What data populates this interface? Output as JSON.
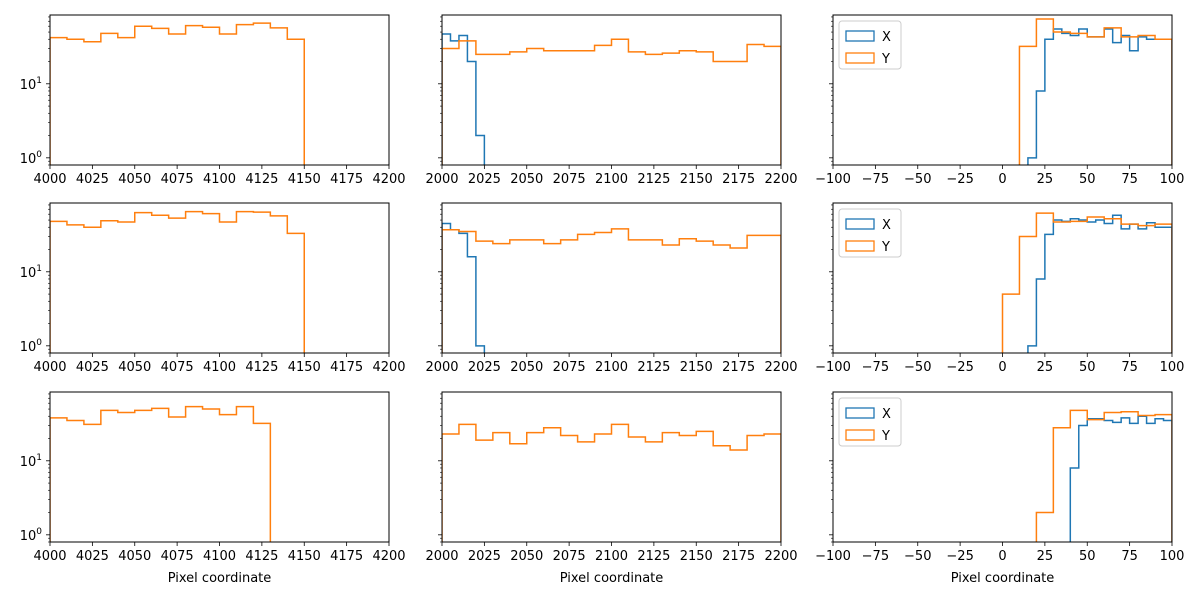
{
  "figure": {
    "xlabel": "Pixel coordinate"
  },
  "colors": {
    "X": "#1f77b4",
    "Y": "#ff7f0e",
    "axis": "#000000",
    "background": "#ffffff"
  },
  "chart_data": [
    {
      "type": "histogram-step",
      "row": 0,
      "col": 0,
      "yscale": "log",
      "xlim": [
        4000,
        4200
      ],
      "ylim": [
        0.8,
        85
      ],
      "xticks": [
        "4000",
        "4025",
        "4050",
        "4075",
        "4100",
        "4125",
        "4150",
        "4175",
        "4200"
      ],
      "yticks": [
        {
          "label": "10⁰",
          "v": 1
        },
        {
          "label": "10¹",
          "v": 10
        }
      ],
      "legend": null,
      "series": [
        {
          "name": "Y",
          "bins": [
            4000,
            4010,
            4020,
            4030,
            4040,
            4050,
            4060,
            4070,
            4080,
            4090,
            4100,
            4110,
            4120,
            4130,
            4140,
            4150
          ],
          "counts": [
            42,
            40,
            37,
            48,
            42,
            60,
            56,
            47,
            61,
            58,
            47,
            63,
            66,
            57,
            40
          ]
        }
      ]
    },
    {
      "type": "histogram-step",
      "row": 0,
      "col": 1,
      "yscale": "log",
      "xlim": [
        2000,
        2200
      ],
      "ylim": [
        0.8,
        85
      ],
      "xticks": [
        "2000",
        "2025",
        "2050",
        "2075",
        "2100",
        "2125",
        "2150",
        "2175",
        "2200"
      ],
      "yticks": [],
      "legend": null,
      "series": [
        {
          "name": "X",
          "bins": [
            2000,
            2005,
            2010,
            2015,
            2020,
            2025
          ],
          "counts": [
            47,
            38,
            45,
            20,
            2
          ]
        },
        {
          "name": "Y",
          "bins": [
            2000,
            2010,
            2020,
            2030,
            2040,
            2050,
            2060,
            2070,
            2080,
            2090,
            2100,
            2110,
            2120,
            2130,
            2140,
            2150,
            2160,
            2170,
            2180,
            2190,
            2200
          ],
          "counts": [
            30,
            38,
            25,
            25,
            27,
            30,
            28,
            28,
            28,
            33,
            40,
            27,
            25,
            26,
            28,
            27,
            20,
            20,
            34,
            32
          ]
        }
      ]
    },
    {
      "type": "histogram-step",
      "row": 0,
      "col": 2,
      "yscale": "log",
      "xlim": [
        -100,
        100
      ],
      "ylim": [
        0.8,
        85
      ],
      "xticks": [
        "−100",
        "−75",
        "−50",
        "−25",
        "0",
        "25",
        "50",
        "75",
        "100"
      ],
      "yticks": [],
      "legend": "upper-left",
      "series": [
        {
          "name": "X",
          "bins": [
            15,
            20,
            25,
            30,
            35,
            40,
            45,
            50,
            55,
            60,
            65,
            70,
            75,
            80,
            85,
            90,
            95,
            100
          ],
          "counts": [
            1,
            8,
            40,
            55,
            48,
            45,
            55,
            43,
            43,
            55,
            36,
            45,
            28,
            43,
            40,
            40,
            40
          ]
        },
        {
          "name": "Y",
          "bins": [
            10,
            20,
            30,
            40,
            50,
            60,
            70,
            80,
            90,
            100
          ],
          "counts": [
            32,
            75,
            50,
            48,
            43,
            57,
            43,
            45,
            40
          ]
        }
      ]
    },
    {
      "type": "histogram-step",
      "row": 1,
      "col": 0,
      "yscale": "log",
      "xlim": [
        4000,
        4200
      ],
      "ylim": [
        0.8,
        85
      ],
      "xticks": [
        "4000",
        "4025",
        "4050",
        "4075",
        "4100",
        "4125",
        "4150",
        "4175",
        "4200"
      ],
      "yticks": [
        {
          "label": "10⁰",
          "v": 1
        },
        {
          "label": "10¹",
          "v": 10
        }
      ],
      "legend": null,
      "series": [
        {
          "name": "Y",
          "bins": [
            4000,
            4010,
            4020,
            4030,
            4040,
            4050,
            4060,
            4070,
            4080,
            4090,
            4100,
            4110,
            4120,
            4130,
            4140,
            4150
          ],
          "counts": [
            48,
            43,
            40,
            49,
            47,
            63,
            58,
            53,
            65,
            61,
            47,
            65,
            64,
            57,
            33
          ]
        }
      ]
    },
    {
      "type": "histogram-step",
      "row": 1,
      "col": 1,
      "yscale": "log",
      "xlim": [
        2000,
        2200
      ],
      "ylim": [
        0.8,
        85
      ],
      "xticks": [
        "2000",
        "2025",
        "2050",
        "2075",
        "2100",
        "2125",
        "2150",
        "2175",
        "2200"
      ],
      "yticks": [],
      "legend": null,
      "series": [
        {
          "name": "X",
          "bins": [
            2000,
            2005,
            2010,
            2015,
            2020,
            2025
          ],
          "counts": [
            45,
            37,
            33,
            16,
            1
          ]
        },
        {
          "name": "Y",
          "bins": [
            2000,
            2010,
            2020,
            2030,
            2040,
            2050,
            2060,
            2070,
            2080,
            2090,
            2100,
            2110,
            2120,
            2130,
            2140,
            2150,
            2160,
            2170,
            2180,
            2190,
            2200
          ],
          "counts": [
            37,
            35,
            26,
            24,
            27,
            27,
            24,
            27,
            32,
            34,
            38,
            27,
            27,
            23,
            28,
            26,
            23,
            21,
            31,
            31
          ]
        }
      ]
    },
    {
      "type": "histogram-step",
      "row": 1,
      "col": 2,
      "yscale": "log",
      "xlim": [
        -100,
        100
      ],
      "ylim": [
        0.8,
        85
      ],
      "xticks": [
        "−100",
        "−75",
        "−50",
        "−25",
        "0",
        "25",
        "50",
        "75",
        "100"
      ],
      "yticks": [],
      "legend": "upper-left",
      "series": [
        {
          "name": "X",
          "bins": [
            15,
            20,
            25,
            30,
            35,
            40,
            45,
            50,
            55,
            60,
            65,
            70,
            75,
            80,
            85,
            90,
            95,
            100
          ],
          "counts": [
            1,
            8,
            32,
            50,
            48,
            52,
            50,
            47,
            50,
            45,
            58,
            38,
            44,
            38,
            46,
            40,
            40
          ]
        },
        {
          "name": "Y",
          "bins": [
            0,
            10,
            20,
            30,
            40,
            50,
            60,
            70,
            80,
            90,
            100
          ],
          "counts": [
            5,
            30,
            62,
            47,
            48,
            55,
            52,
            44,
            42,
            44
          ]
        }
      ]
    },
    {
      "type": "histogram-step",
      "row": 2,
      "col": 0,
      "yscale": "log",
      "xlim": [
        4000,
        4200
      ],
      "ylim": [
        0.8,
        85
      ],
      "xticks": [
        "4000",
        "4025",
        "4050",
        "4075",
        "4100",
        "4125",
        "4150",
        "4175",
        "4200"
      ],
      "yticks": [
        {
          "label": "10⁰",
          "v": 1
        },
        {
          "label": "10¹",
          "v": 10
        }
      ],
      "legend": null,
      "xlabel": "Pixel coordinate",
      "series": [
        {
          "name": "Y",
          "bins": [
            4000,
            4010,
            4020,
            4030,
            4040,
            4050,
            4060,
            4070,
            4080,
            4090,
            4100,
            4110,
            4120,
            4130
          ],
          "counts": [
            38,
            35,
            31,
            48,
            45,
            48,
            51,
            39,
            54,
            50,
            42,
            54,
            32
          ]
        }
      ]
    },
    {
      "type": "histogram-step",
      "row": 2,
      "col": 1,
      "yscale": "log",
      "xlim": [
        2000,
        2200
      ],
      "ylim": [
        0.8,
        85
      ],
      "xticks": [
        "2000",
        "2025",
        "2050",
        "2075",
        "2100",
        "2125",
        "2150",
        "2175",
        "2200"
      ],
      "yticks": [],
      "legend": null,
      "xlabel": "Pixel coordinate",
      "series": [
        {
          "name": "Y",
          "bins": [
            2000,
            2010,
            2020,
            2030,
            2040,
            2050,
            2060,
            2070,
            2080,
            2090,
            2100,
            2110,
            2120,
            2130,
            2140,
            2150,
            2160,
            2170,
            2180,
            2190,
            2200
          ],
          "counts": [
            23,
            31,
            19,
            24,
            17,
            24,
            28,
            22,
            18,
            23,
            31,
            21,
            18,
            24,
            22,
            25,
            16,
            14,
            22,
            23
          ]
        }
      ]
    },
    {
      "type": "histogram-step",
      "row": 2,
      "col": 2,
      "yscale": "log",
      "xlim": [
        -100,
        100
      ],
      "ylim": [
        0.8,
        85
      ],
      "xticks": [
        "−100",
        "−75",
        "−50",
        "−25",
        "0",
        "25",
        "50",
        "75",
        "100"
      ],
      "yticks": [],
      "legend": "upper-left",
      "xlabel": "Pixel coordinate",
      "series": [
        {
          "name": "X",
          "bins": [
            40,
            45,
            50,
            55,
            60,
            65,
            70,
            75,
            80,
            85,
            90,
            95,
            100
          ],
          "counts": [
            8,
            30,
            37,
            37,
            35,
            33,
            38,
            32,
            40,
            32,
            37,
            35
          ]
        },
        {
          "name": "Y",
          "bins": [
            20,
            30,
            40,
            50,
            60,
            70,
            80,
            90,
            100
          ],
          "counts": [
            2,
            28,
            48,
            36,
            45,
            46,
            41,
            42
          ]
        }
      ]
    }
  ]
}
